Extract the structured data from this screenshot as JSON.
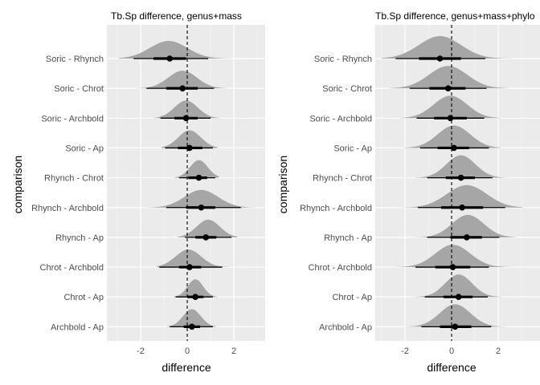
{
  "colors": {
    "panel_bg": "#ebebeb",
    "grid_major": "#ffffff",
    "grid_minor": "#f5f5f5",
    "density_fill": "#a6a6a6",
    "interval": "#000000",
    "zero_line": "#000000",
    "tick_text": "#4d4d4d"
  },
  "chart_data": [
    {
      "type": "halfeye",
      "title": "Tb.Sp difference, genus+mass",
      "xlabel": "difference",
      "ylabel": "comparison",
      "xlim": [
        -3.3,
        3.3
      ],
      "xticks": [
        -2,
        0,
        2
      ],
      "reference_line": 0,
      "grid": true,
      "categories": [
        "Soric - Rhynch",
        "Soric - Chrot",
        "Soric - Archbold",
        "Soric - Ap",
        "Rhynch - Chrot",
        "Rhynch - Archbold",
        "Rhynch - Ap",
        "Chrot - Archbold",
        "Chrot - Ap",
        "Archbold - Ap"
      ],
      "series": [
        {
          "category": "Soric - Rhynch",
          "median": -0.75,
          "ci66": [
            -1.45,
            -0.05
          ],
          "ci95": [
            -2.3,
            0.9
          ],
          "density_mode": -0.8,
          "density_sd": 0.8,
          "density_range": [
            -2.95,
            1.9
          ]
        },
        {
          "category": "Soric - Chrot",
          "median": -0.2,
          "ci66": [
            -0.9,
            0.45
          ],
          "ci95": [
            -1.75,
            1.15
          ],
          "density_mode": -0.2,
          "density_sd": 0.62,
          "density_range": [
            -2.25,
            1.7
          ]
        },
        {
          "category": "Soric - Archbold",
          "median": -0.05,
          "ci66": [
            -0.55,
            0.45
          ],
          "ci95": [
            -1.15,
            1.0
          ],
          "density_mode": -0.05,
          "density_sd": 0.5,
          "density_range": [
            -1.45,
            1.4
          ]
        },
        {
          "category": "Soric - Ap",
          "median": 0.1,
          "ci66": [
            -0.4,
            0.65
          ],
          "ci95": [
            -0.95,
            1.1
          ],
          "density_mode": 0.1,
          "density_sd": 0.48,
          "density_range": [
            -1.1,
            1.3
          ]
        },
        {
          "category": "Rhynch - Chrot",
          "median": 0.5,
          "ci66": [
            0.05,
            0.85
          ],
          "ci95": [
            -0.35,
            1.2
          ],
          "density_mode": 0.5,
          "density_sd": 0.38,
          "density_range": [
            -0.55,
            1.35
          ]
        },
        {
          "category": "Rhynch - Archbold",
          "median": 0.6,
          "ci66": [
            -0.05,
            1.2
          ],
          "ci95": [
            -0.9,
            2.3
          ],
          "density_mode": 0.6,
          "density_sd": 0.72,
          "density_range": [
            -1.8,
            2.95
          ]
        },
        {
          "category": "Rhynch - Ap",
          "median": 0.8,
          "ci66": [
            0.35,
            1.25
          ],
          "ci95": [
            -0.1,
            1.9
          ],
          "density_mode": 0.9,
          "density_sd": 0.5,
          "density_range": [
            -0.4,
            2.15
          ]
        },
        {
          "category": "Chrot - Archbold",
          "median": 0.1,
          "ci66": [
            -0.35,
            0.6
          ],
          "ci95": [
            -1.2,
            1.5
          ],
          "density_mode": 0.05,
          "density_sd": 0.55,
          "density_range": [
            -1.3,
            1.8
          ]
        },
        {
          "category": "Chrot - Ap",
          "median": 0.35,
          "ci66": [
            0.0,
            0.7
          ],
          "ci95": [
            -0.5,
            1.1
          ],
          "density_mode": 0.35,
          "density_sd": 0.33,
          "density_range": [
            -0.6,
            1.3
          ]
        },
        {
          "category": "Archbold - Ap",
          "median": 0.2,
          "ci66": [
            -0.15,
            0.55
          ],
          "ci95": [
            -0.75,
            1.1
          ],
          "density_mode": 0.2,
          "density_sd": 0.38,
          "density_range": [
            -0.85,
            1.25
          ]
        }
      ]
    },
    {
      "type": "halfeye",
      "title": "Tb.Sp difference, genus+mass+phylo",
      "xlabel": "difference",
      "ylabel": "comparison",
      "xlim": [
        -3.3,
        3.3
      ],
      "xticks": [
        -2,
        0,
        2
      ],
      "reference_line": 0,
      "grid": true,
      "categories": [
        "Soric - Rhynch",
        "Soric - Chrot",
        "Soric - Archbold",
        "Soric - Ap",
        "Rhynch - Chrot",
        "Rhynch - Archbold",
        "Rhynch - Ap",
        "Chrot - Archbold",
        "Chrot - Ap",
        "Archbold - Ap"
      ],
      "series": [
        {
          "category": "Soric - Rhynch",
          "median": -0.5,
          "ci66": [
            -1.4,
            0.4
          ],
          "ci95": [
            -2.4,
            1.45
          ],
          "density_mode": -0.5,
          "density_sd": 0.9,
          "density_range": [
            -3.0,
            2.6
          ]
        },
        {
          "category": "Soric - Chrot",
          "median": -0.15,
          "ci66": [
            -0.95,
            0.6
          ],
          "ci95": [
            -1.8,
            1.5
          ],
          "density_mode": -0.15,
          "density_sd": 0.82,
          "density_range": [
            -2.65,
            2.45
          ]
        },
        {
          "category": "Soric - Archbold",
          "median": -0.05,
          "ci66": [
            -0.75,
            0.65
          ],
          "ci95": [
            -1.5,
            1.4
          ],
          "density_mode": -0.05,
          "density_sd": 0.72,
          "density_range": [
            -2.25,
            2.1
          ]
        },
        {
          "category": "Soric - Ap",
          "median": 0.1,
          "ci66": [
            -0.6,
            0.75
          ],
          "ci95": [
            -1.35,
            1.6
          ],
          "density_mode": 0.1,
          "density_sd": 0.7,
          "density_range": [
            -2.05,
            2.1
          ]
        },
        {
          "category": "Rhynch - Chrot",
          "median": 0.4,
          "ci66": [
            -0.25,
            1.0
          ],
          "ci95": [
            -1.05,
            1.75
          ],
          "density_mode": 0.4,
          "density_sd": 0.62,
          "density_range": [
            -1.6,
            2.3
          ]
        },
        {
          "category": "Rhynch - Archbold",
          "median": 0.45,
          "ci66": [
            -0.45,
            1.35
          ],
          "ci95": [
            -1.45,
            2.3
          ],
          "density_mode": 0.65,
          "density_sd": 0.85,
          "density_range": [
            -2.95,
            3.05
          ]
        },
        {
          "category": "Rhynch - Ap",
          "median": 0.65,
          "ci66": [
            -0.05,
            1.3
          ],
          "ci95": [
            -1.05,
            2.05
          ],
          "density_mode": 0.7,
          "density_sd": 0.68,
          "density_range": [
            -2.05,
            2.75
          ]
        },
        {
          "category": "Chrot - Archbold",
          "median": 0.05,
          "ci66": [
            -0.7,
            0.8
          ],
          "ci95": [
            -1.55,
            1.6
          ],
          "density_mode": 0.05,
          "density_sd": 0.75,
          "density_range": [
            -2.45,
            2.6
          ]
        },
        {
          "category": "Chrot - Ap",
          "median": 0.3,
          "ci66": [
            -0.35,
            0.9
          ],
          "ci95": [
            -1.15,
            1.55
          ],
          "density_mode": 0.3,
          "density_sd": 0.58,
          "density_range": [
            -1.7,
            2.15
          ]
        },
        {
          "category": "Archbold - Ap",
          "median": 0.15,
          "ci66": [
            -0.5,
            0.85
          ],
          "ci95": [
            -1.3,
            1.7
          ],
          "density_mode": 0.15,
          "density_sd": 0.66,
          "density_range": [
            -2.05,
            2.3
          ]
        }
      ]
    }
  ]
}
